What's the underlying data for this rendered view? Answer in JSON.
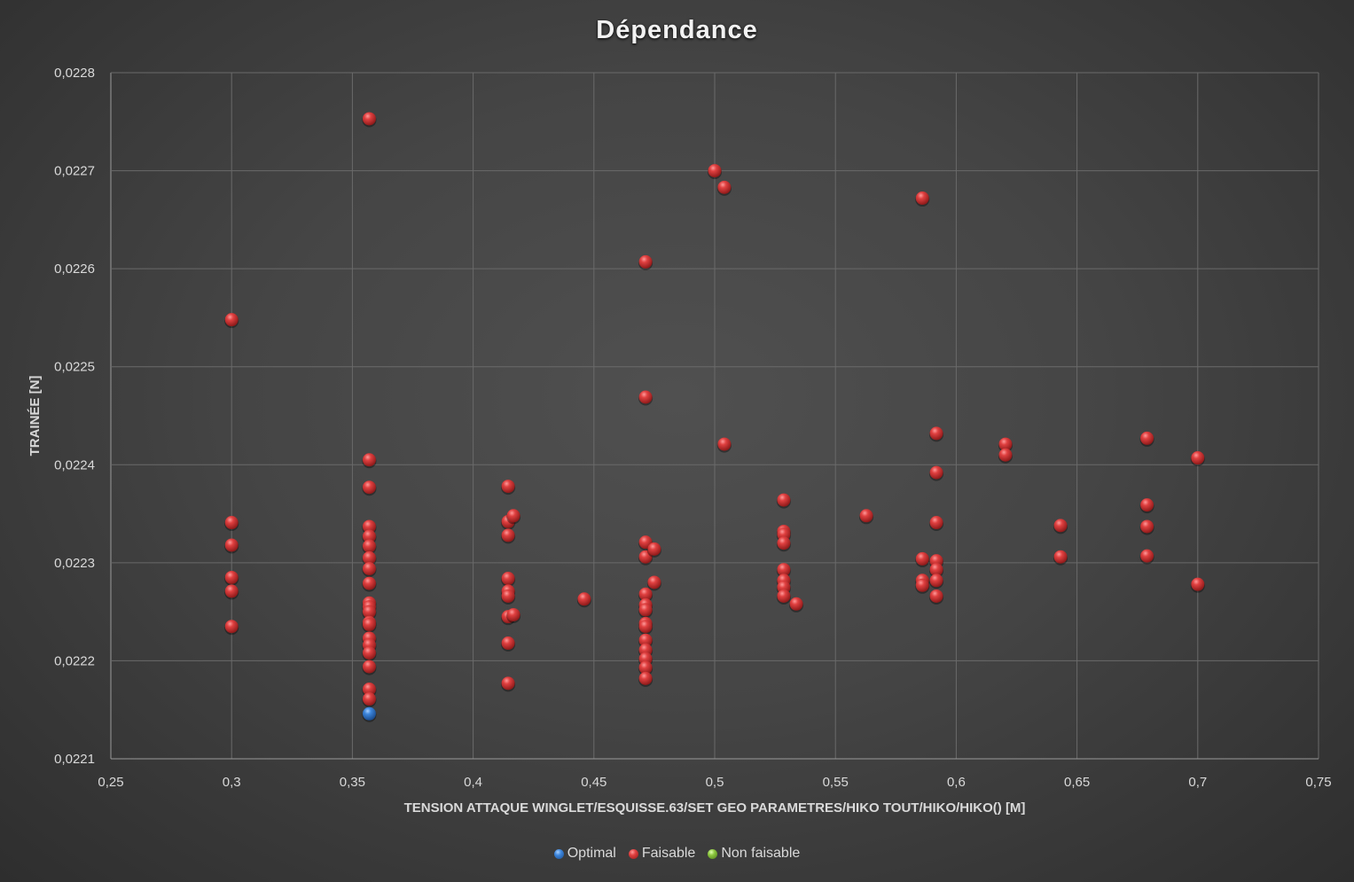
{
  "chart_data": {
    "type": "scatter",
    "title": "Dépendance",
    "xlabel": "TENSION ATTAQUE WINGLET/ESQUISSE.63/SET GEO PARAMETRES/HIKO TOUT/HIKO/HIKO() [M]",
    "ylabel": "TRAINÉE [N]",
    "xlim": [
      0.25,
      0.75
    ],
    "ylim": [
      0.0221,
      0.0228
    ],
    "grid": true,
    "legend_position": "bottom",
    "x_ticks": [
      0.25,
      0.3,
      0.35,
      0.4,
      0.45,
      0.5,
      0.55,
      0.6,
      0.65,
      0.7,
      0.75
    ],
    "x_tick_labels": [
      "0,25",
      "0,3",
      "0,35",
      "0,4",
      "0,45",
      "0,5",
      "0,55",
      "0,6",
      "0,65",
      "0,7",
      "0,75"
    ],
    "y_ticks": [
      0.0221,
      0.0222,
      0.0223,
      0.0224,
      0.0225,
      0.0226,
      0.0227,
      0.0228
    ],
    "y_tick_labels": [
      "0,0221",
      "0,0222",
      "0,0223",
      "0,0224",
      "0,0225",
      "0,0226",
      "0,0227",
      "0,0228"
    ],
    "series": [
      {
        "name": "Optimal",
        "color": "#3a7fd5",
        "points": [
          [
            0.357,
            0.022146
          ]
        ]
      },
      {
        "name": "Faisable",
        "color": "#d63a3a",
        "points": [
          [
            0.3,
            0.022548
          ],
          [
            0.3,
            0.022341
          ],
          [
            0.3,
            0.022318
          ],
          [
            0.3,
            0.022285
          ],
          [
            0.3,
            0.022271
          ],
          [
            0.3,
            0.022235
          ],
          [
            0.357,
            0.022753
          ],
          [
            0.357,
            0.022405
          ],
          [
            0.357,
            0.022377
          ],
          [
            0.357,
            0.022337
          ],
          [
            0.357,
            0.022327
          ],
          [
            0.357,
            0.022317
          ],
          [
            0.357,
            0.022305
          ],
          [
            0.357,
            0.022294
          ],
          [
            0.357,
            0.022279
          ],
          [
            0.357,
            0.022259
          ],
          [
            0.357,
            0.022255
          ],
          [
            0.357,
            0.02225
          ],
          [
            0.357,
            0.022239
          ],
          [
            0.357,
            0.022237
          ],
          [
            0.357,
            0.022223
          ],
          [
            0.357,
            0.022216
          ],
          [
            0.357,
            0.022208
          ],
          [
            0.357,
            0.022194
          ],
          [
            0.357,
            0.022171
          ],
          [
            0.357,
            0.022161
          ],
          [
            0.4145,
            0.022378
          ],
          [
            0.4145,
            0.022342
          ],
          [
            0.4145,
            0.022328
          ],
          [
            0.4145,
            0.022284
          ],
          [
            0.4145,
            0.022271
          ],
          [
            0.4145,
            0.022266
          ],
          [
            0.4145,
            0.022245
          ],
          [
            0.4145,
            0.022218
          ],
          [
            0.4145,
            0.022177
          ],
          [
            0.4167,
            0.022348
          ],
          [
            0.4167,
            0.022247
          ],
          [
            0.446,
            0.022263
          ],
          [
            0.4714,
            0.022607
          ],
          [
            0.4714,
            0.022469
          ],
          [
            0.4714,
            0.022321
          ],
          [
            0.4714,
            0.022306
          ],
          [
            0.4714,
            0.022268
          ],
          [
            0.4714,
            0.022257
          ],
          [
            0.4714,
            0.022252
          ],
          [
            0.4714,
            0.022238
          ],
          [
            0.4714,
            0.022235
          ],
          [
            0.4714,
            0.022221
          ],
          [
            0.4714,
            0.022211
          ],
          [
            0.4714,
            0.022202
          ],
          [
            0.4714,
            0.022193
          ],
          [
            0.4714,
            0.022182
          ],
          [
            0.475,
            0.022314
          ],
          [
            0.475,
            0.02228
          ],
          [
            0.5,
            0.0227
          ],
          [
            0.504,
            0.022683
          ],
          [
            0.504,
            0.022421
          ],
          [
            0.5286,
            0.022364
          ],
          [
            0.5286,
            0.022332
          ],
          [
            0.5286,
            0.022329
          ],
          [
            0.5286,
            0.02232
          ],
          [
            0.5286,
            0.022293
          ],
          [
            0.5286,
            0.022282
          ],
          [
            0.5286,
            0.022275
          ],
          [
            0.5286,
            0.022266
          ],
          [
            0.5338,
            0.022258
          ],
          [
            0.5628,
            0.022348
          ],
          [
            0.586,
            0.022672
          ],
          [
            0.586,
            0.022304
          ],
          [
            0.586,
            0.022282
          ],
          [
            0.586,
            0.022277
          ],
          [
            0.5918,
            0.022432
          ],
          [
            0.5918,
            0.022392
          ],
          [
            0.5918,
            0.022341
          ],
          [
            0.5918,
            0.022302
          ],
          [
            0.5918,
            0.022293
          ],
          [
            0.5918,
            0.022282
          ],
          [
            0.5918,
            0.022266
          ],
          [
            0.6204,
            0.022421
          ],
          [
            0.6204,
            0.02241
          ],
          [
            0.6432,
            0.022338
          ],
          [
            0.6432,
            0.022306
          ],
          [
            0.679,
            0.022427
          ],
          [
            0.679,
            0.022359
          ],
          [
            0.679,
            0.022337
          ],
          [
            0.679,
            0.022307
          ],
          [
            0.7,
            0.022407
          ],
          [
            0.7,
            0.022278
          ]
        ]
      },
      {
        "name": "Non faisable",
        "color": "#8cc63f",
        "points": []
      }
    ]
  }
}
